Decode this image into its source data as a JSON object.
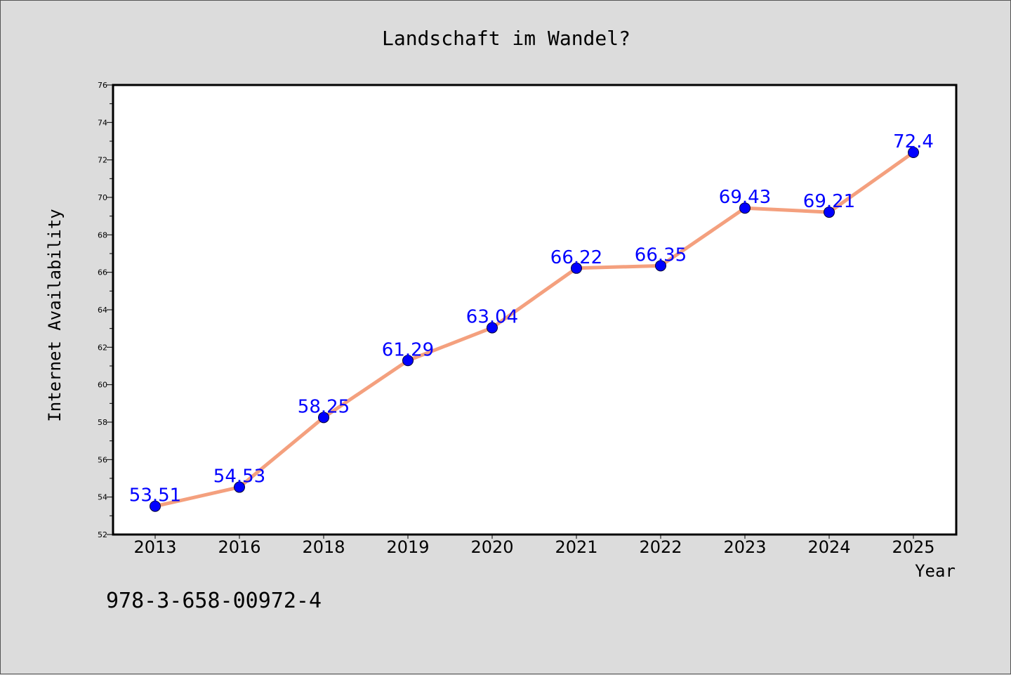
{
  "chart_data": {
    "type": "line",
    "title": "Landschaft im Wandel?",
    "xlabel": "Year",
    "ylabel": "Internet Availability",
    "categories": [
      "2013",
      "2016",
      "2018",
      "2019",
      "2020",
      "2021",
      "2022",
      "2023",
      "2024",
      "2025"
    ],
    "values": [
      53.51,
      54.53,
      58.25,
      61.29,
      63.04,
      66.22,
      66.35,
      69.43,
      69.21,
      72.4
    ],
    "data_labels": [
      "53.51",
      "54.53",
      "58.25",
      "61.29",
      "63.04",
      "66.22",
      "66.35",
      "69.43",
      "69.21",
      "72.4"
    ],
    "ylim": [
      52,
      76
    ],
    "yticks": [
      52,
      54,
      56,
      58,
      60,
      62,
      64,
      66,
      68,
      70,
      72,
      74,
      76
    ],
    "grid": false,
    "legend": "none",
    "line_color": "#f4a07e",
    "marker_color": "#0000ff",
    "label_color": "#0000ff"
  },
  "footer": {
    "isbn": "978-3-658-00972-4"
  }
}
